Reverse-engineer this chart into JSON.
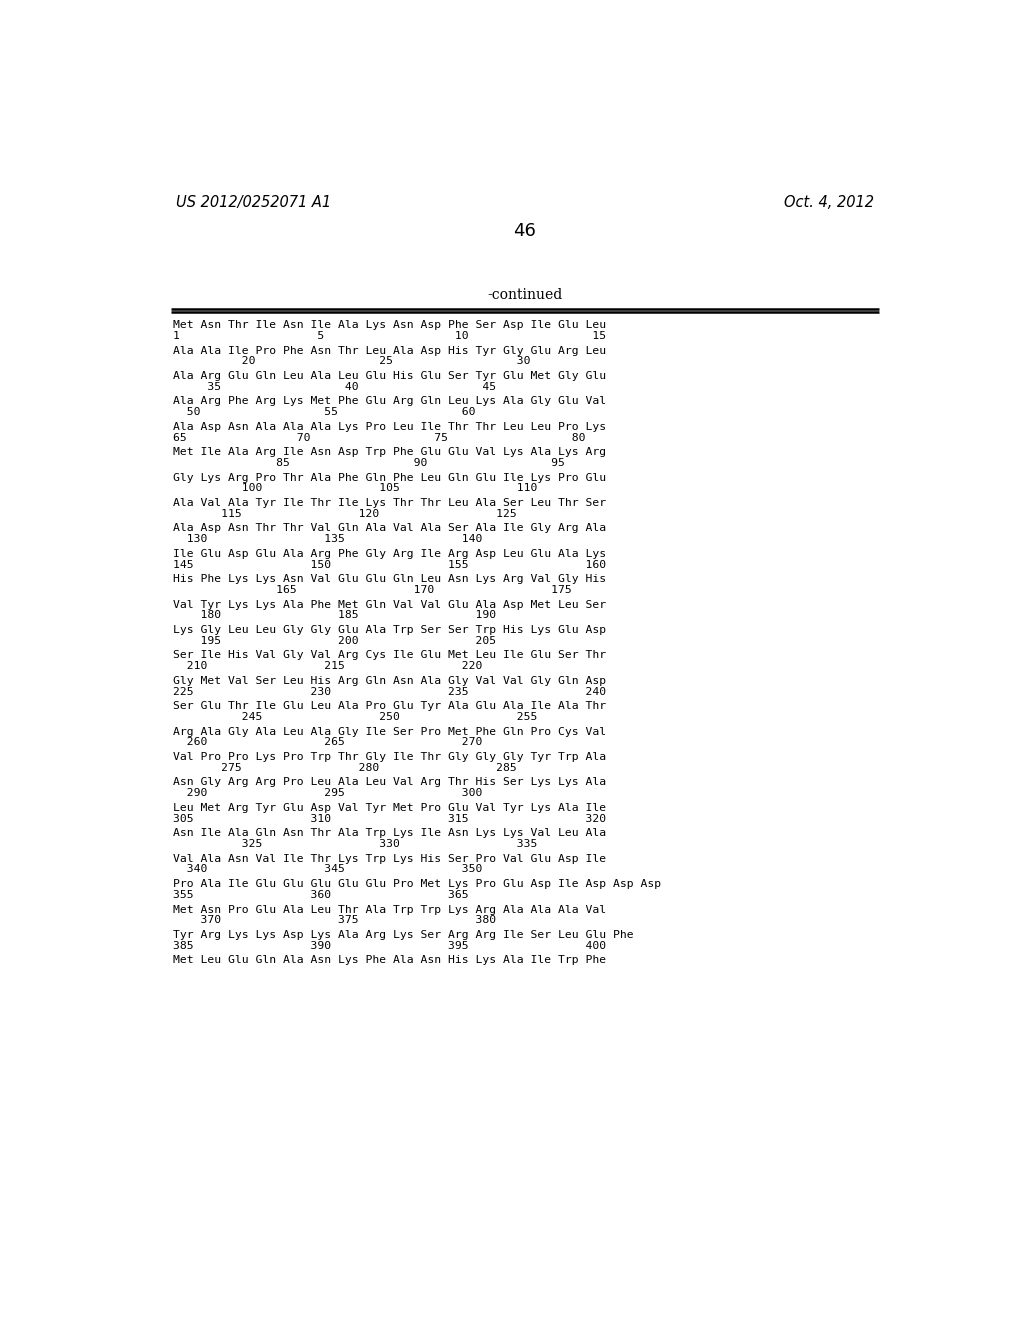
{
  "header_left": "US 2012/0252071 A1",
  "header_right": "Oct. 4, 2012",
  "page_number": "46",
  "continued_text": "-continued",
  "background_color": "#ffffff",
  "text_color": "#000000",
  "lines": [
    [
      "Met Asn Thr Ile Asn Ile Ala Lys Asn Asp Phe Ser Asp Ile Glu Leu",
      "1                    5                   10                  15"
    ],
    [
      "Ala Ala Ile Pro Phe Asn Thr Leu Ala Asp His Tyr Gly Glu Arg Leu",
      "          20                  25                  30"
    ],
    [
      "Ala Arg Glu Gln Leu Ala Leu Glu His Glu Ser Tyr Glu Met Gly Glu",
      "     35                  40                  45"
    ],
    [
      "Ala Arg Phe Arg Lys Met Phe Glu Arg Gln Leu Lys Ala Gly Glu Val",
      "  50                  55                  60"
    ],
    [
      "Ala Asp Asn Ala Ala Ala Lys Pro Leu Ile Thr Thr Leu Leu Pro Lys",
      "65                70                  75                  80"
    ],
    [
      "Met Ile Ala Arg Ile Asn Asp Trp Phe Glu Glu Val Lys Ala Lys Arg",
      "               85                  90                  95"
    ],
    [
      "Gly Lys Arg Pro Thr Ala Phe Gln Phe Leu Gln Glu Ile Lys Pro Glu",
      "          100                 105                 110"
    ],
    [
      "Ala Val Ala Tyr Ile Thr Ile Lys Thr Thr Leu Ala Ser Leu Thr Ser",
      "       115                 120                 125"
    ],
    [
      "Ala Asp Asn Thr Thr Val Gln Ala Val Ala Ser Ala Ile Gly Arg Ala",
      "  130                 135                 140"
    ],
    [
      "Ile Glu Asp Glu Ala Arg Phe Gly Arg Ile Arg Asp Leu Glu Ala Lys",
      "145                 150                 155                 160"
    ],
    [
      "His Phe Lys Lys Asn Val Glu Glu Gln Leu Asn Lys Arg Val Gly His",
      "               165                 170                 175"
    ],
    [
      "Val Tyr Lys Lys Ala Phe Met Gln Val Val Glu Ala Asp Met Leu Ser",
      "    180                 185                 190"
    ],
    [
      "Lys Gly Leu Leu Gly Gly Glu Ala Trp Ser Ser Trp His Lys Glu Asp",
      "    195                 200                 205"
    ],
    [
      "Ser Ile His Val Gly Val Arg Cys Ile Glu Met Leu Ile Glu Ser Thr",
      "  210                 215                 220"
    ],
    [
      "Gly Met Val Ser Leu His Arg Gln Asn Ala Gly Val Val Gly Gln Asp",
      "225                 230                 235                 240"
    ],
    [
      "Ser Glu Thr Ile Glu Leu Ala Pro Glu Tyr Ala Glu Ala Ile Ala Thr",
      "          245                 250                 255"
    ],
    [
      "Arg Ala Gly Ala Leu Ala Gly Ile Ser Pro Met Phe Gln Pro Cys Val",
      "  260                 265                 270"
    ],
    [
      "Val Pro Pro Lys Pro Trp Thr Gly Ile Thr Gly Gly Gly Tyr Trp Ala",
      "       275                 280                 285"
    ],
    [
      "Asn Gly Arg Arg Pro Leu Ala Leu Val Arg Thr His Ser Lys Lys Ala",
      "  290                 295                 300"
    ],
    [
      "Leu Met Arg Tyr Glu Asp Val Tyr Met Pro Glu Val Tyr Lys Ala Ile",
      "305                 310                 315                 320"
    ],
    [
      "Asn Ile Ala Gln Asn Thr Ala Trp Lys Ile Asn Lys Lys Val Leu Ala",
      "          325                 330                 335"
    ],
    [
      "Val Ala Asn Val Ile Thr Lys Trp Lys His Ser Pro Val Glu Asp Ile",
      "  340                 345                 350"
    ],
    [
      "Pro Ala Ile Glu Glu Glu Glu Glu Pro Met Lys Pro Glu Asp Ile Asp Asp Asp",
      "355                 360                 365"
    ],
    [
      "Met Asn Pro Glu Ala Leu Thr Ala Trp Trp Lys Arg Ala Ala Ala Val",
      "    370                 375                 380"
    ],
    [
      "Tyr Arg Lys Lys Asp Lys Ala Arg Lys Ser Arg Arg Ile Ser Leu Glu Phe",
      "385                 390                 395                 400"
    ],
    [
      "Met Leu Glu Gln Ala Asn Lys Phe Ala Asn His Lys Ala Ile Trp Phe",
      ""
    ]
  ]
}
